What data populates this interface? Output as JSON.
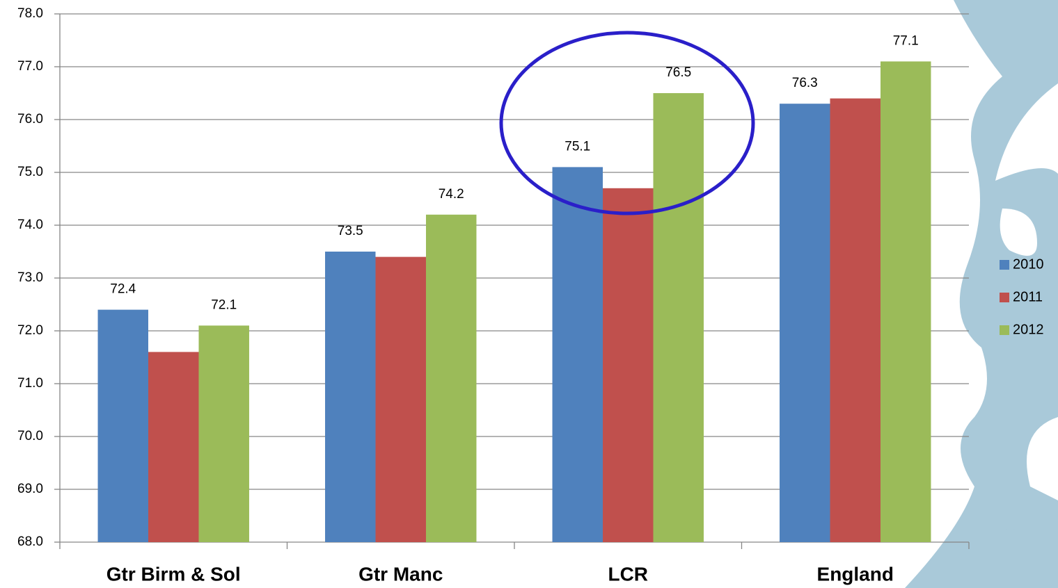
{
  "chart_data": {
    "type": "bar",
    "categories": [
      "Gtr Birm & Sol",
      "Gtr Manc",
      "LCR",
      "England"
    ],
    "series": [
      {
        "name": "2010",
        "color": "#4f81bd",
        "values": [
          72.4,
          73.5,
          75.1,
          76.3
        ],
        "show_labels": true
      },
      {
        "name": "2011",
        "color": "#c0504d",
        "values": [
          71.6,
          73.4,
          74.7,
          76.4
        ],
        "show_labels": false
      },
      {
        "name": "2012",
        "color": "#9bbb59",
        "values": [
          72.1,
          74.2,
          76.5,
          77.1
        ],
        "show_labels": true
      }
    ],
    "ylim": [
      68,
      78
    ],
    "yticks": [
      {
        "value": 68,
        "label": "68.0"
      },
      {
        "value": 69,
        "label": "69.0"
      },
      {
        "value": 70,
        "label": "70.0"
      },
      {
        "value": 71,
        "label": "71.0"
      },
      {
        "value": 72,
        "label": "72.0"
      },
      {
        "value": 73,
        "label": "73.0"
      },
      {
        "value": 74,
        "label": "74.0"
      },
      {
        "value": 75,
        "label": "75.0"
      },
      {
        "value": 76,
        "label": "76.0"
      },
      {
        "value": 77,
        "label": "77.0"
      },
      {
        "value": 78,
        "label": "78.0"
      }
    ],
    "grid": true,
    "legend": "right"
  }
}
